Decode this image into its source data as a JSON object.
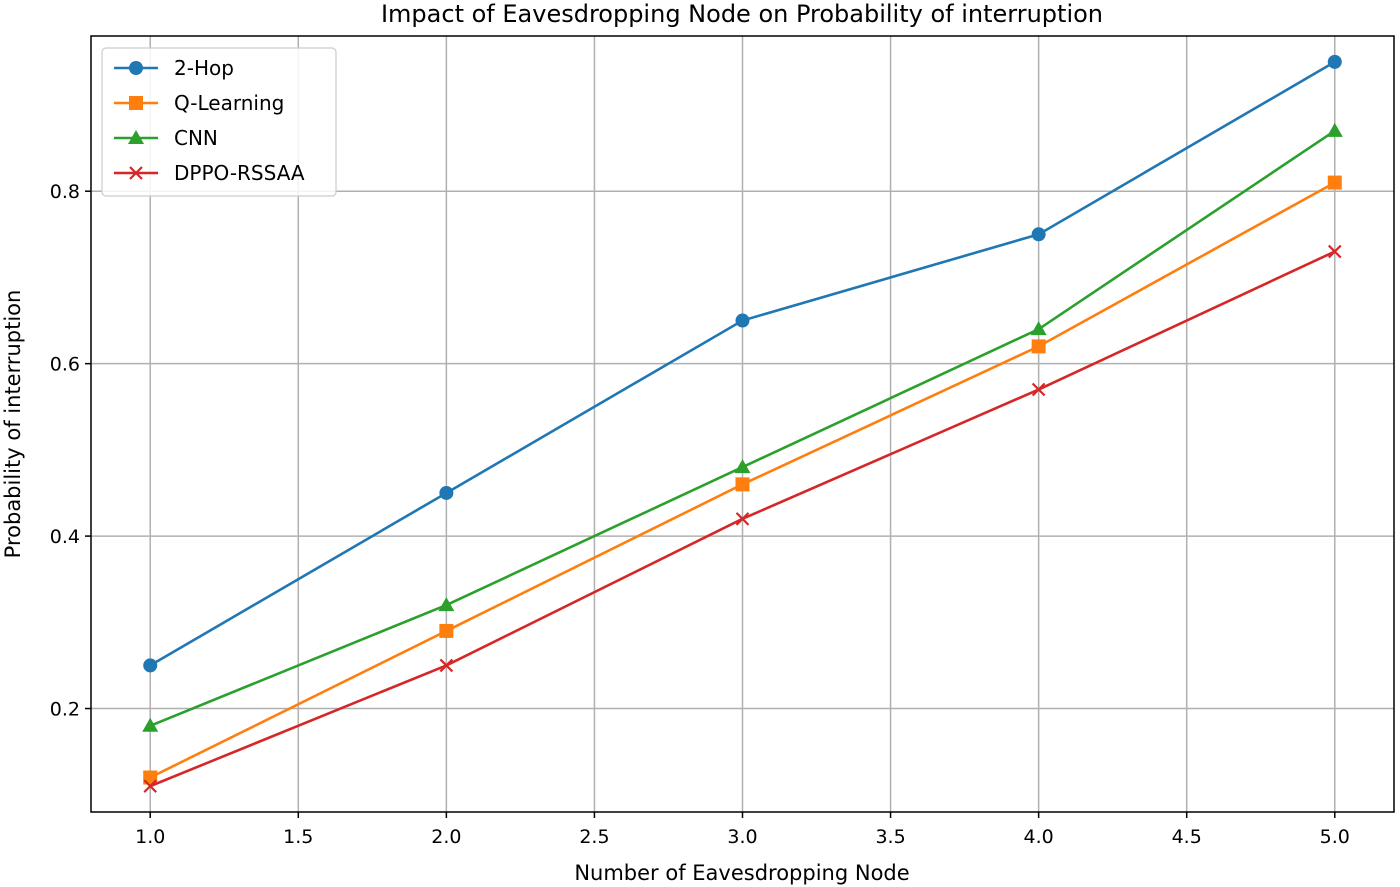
{
  "chart_data": {
    "type": "line",
    "title": "Impact of Eavesdropping Node on Probability of interruption",
    "xlabel": "Number of Eavesdropping Node",
    "ylabel": "Probability of interruption",
    "xlim": [
      0.8,
      5.2
    ],
    "ylim": [
      0.08,
      0.98
    ],
    "xticks": [
      1.0,
      1.5,
      2.0,
      2.5,
      3.0,
      3.5,
      4.0,
      4.5,
      5.0
    ],
    "xtick_labels": [
      "1.0",
      "1.5",
      "2.0",
      "2.5",
      "3.0",
      "3.5",
      "4.0",
      "4.5",
      "5.0"
    ],
    "yticks": [
      0.2,
      0.4,
      0.6,
      0.8
    ],
    "ytick_labels": [
      "0.2",
      "0.4",
      "0.6",
      "0.8"
    ],
    "grid": true,
    "legend_position": "top-left",
    "x": [
      1,
      2,
      3,
      4,
      5
    ],
    "series": [
      {
        "name": "2-Hop",
        "values": [
          0.25,
          0.45,
          0.65,
          0.75,
          0.95
        ],
        "color": "#1f77b4",
        "marker": "circle"
      },
      {
        "name": "Q-Learning",
        "values": [
          0.12,
          0.29,
          0.46,
          0.62,
          0.81
        ],
        "color": "#ff7f0e",
        "marker": "square"
      },
      {
        "name": "CNN",
        "values": [
          0.18,
          0.32,
          0.48,
          0.64,
          0.87
        ],
        "color": "#2ca02c",
        "marker": "triangle"
      },
      {
        "name": "DPPO-RSSAA",
        "values": [
          0.11,
          0.25,
          0.42,
          0.57,
          0.73
        ],
        "color": "#d62728",
        "marker": "x"
      }
    ]
  }
}
